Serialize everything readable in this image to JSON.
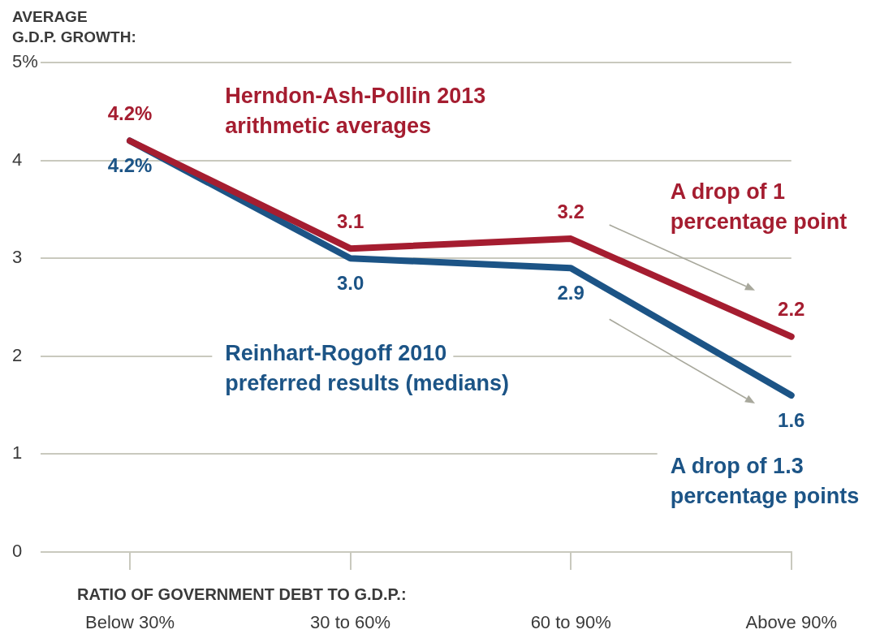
{
  "chart_data": {
    "type": "line",
    "ylabel": "AVERAGE G.D.P. GROWTH:",
    "xlabel": "RATIO OF GOVERNMENT DEBT TO G.D.P.:",
    "categories": [
      "Below 30%",
      "30 to 60%",
      "60 to 90%",
      "Above 90%"
    ],
    "series": [
      {
        "name": "Herndon-Ash-Pollin 2013 arithmetic averages",
        "color": "#a51d30",
        "values": [
          4.2,
          3.1,
          3.2,
          2.2
        ],
        "value_labels": [
          "4.2%",
          "3.1",
          "3.2",
          "2.2"
        ]
      },
      {
        "name": "Reinhart-Rogoff 2010 preferred results (medians)",
        "color": "#1c5486",
        "values": [
          4.2,
          3.0,
          2.9,
          1.6
        ],
        "value_labels": [
          "4.2%",
          "3.0",
          "2.9",
          "1.6"
        ]
      }
    ],
    "ylim": [
      0,
      5
    ],
    "yticks": [
      0,
      1,
      2,
      3,
      4,
      {
        "value": 5,
        "label": "5%"
      }
    ],
    "grid": "y",
    "marker": "none",
    "line_style": "solid",
    "annotations": [
      "A drop of 1 percentage point",
      "A drop of 1.3 percentage points"
    ]
  }
}
